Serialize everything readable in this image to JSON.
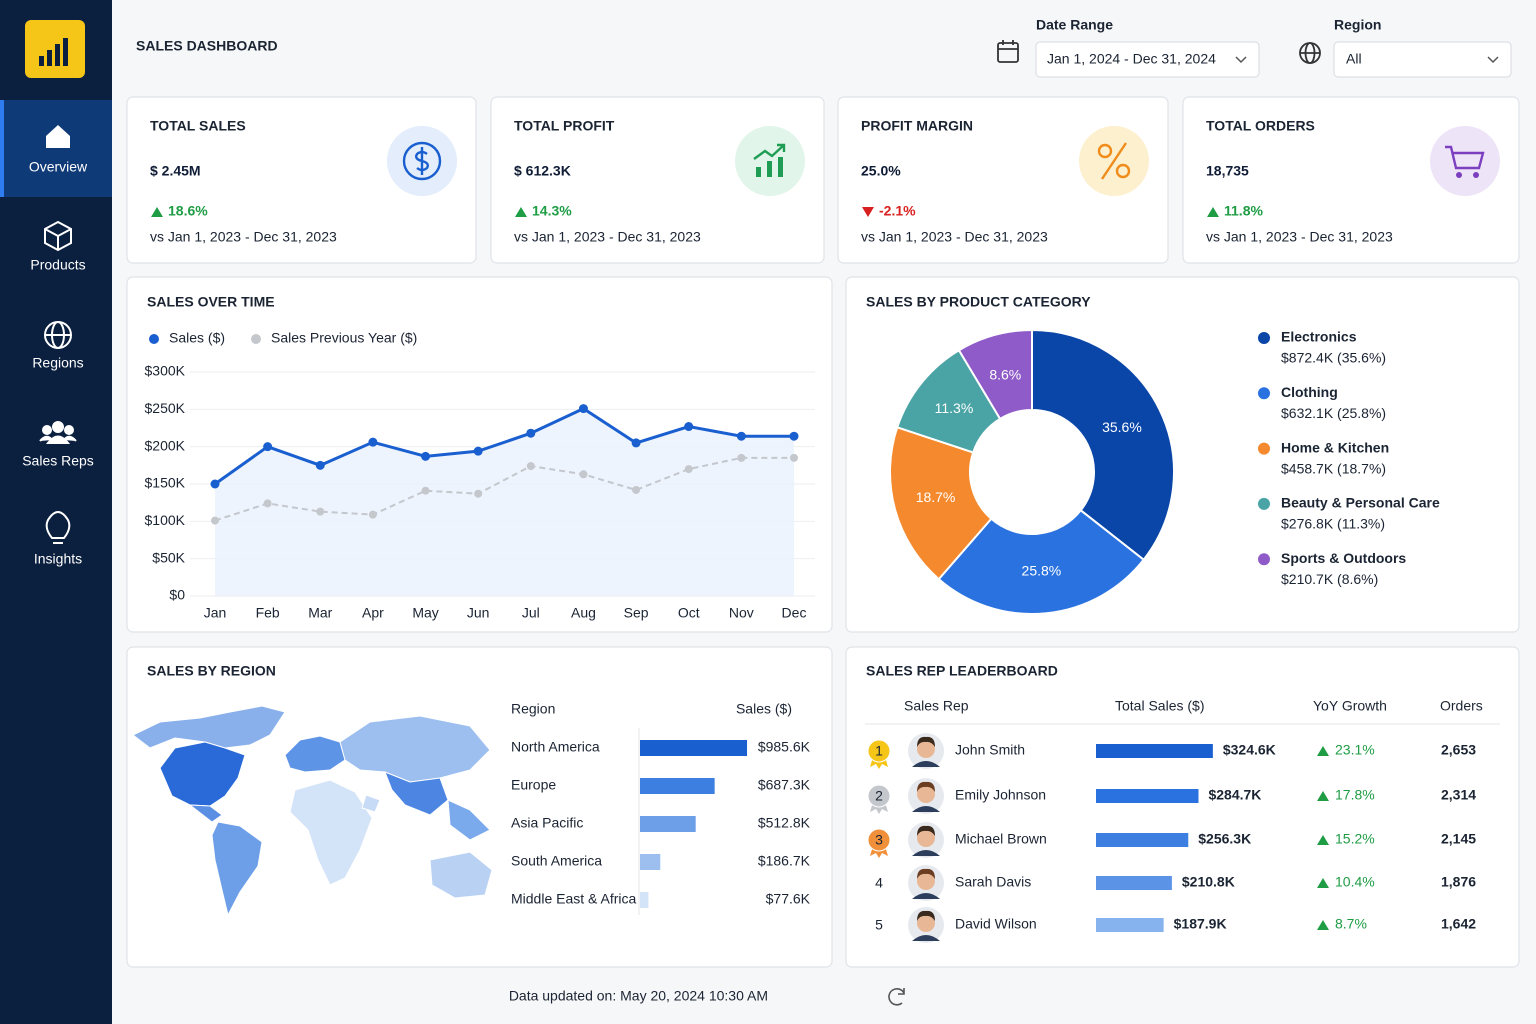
{
  "sidebar": {
    "items": [
      "Overview",
      "Products",
      "Regions",
      "Sales Reps",
      "Insights"
    ],
    "active": 0
  },
  "header": {
    "title": "SALES DASHBOARD",
    "date_range_label": "Date Range",
    "date_range": "Jan 1, 2024 - Dec 31, 2024",
    "region_label": "Region",
    "region": "All"
  },
  "kpis": [
    {
      "title": "TOTAL SALES",
      "value": "$ 2.45M",
      "change": "18.6%",
      "trend": "up",
      "comparison": "vs Jan 1, 2023 - Dec 31, 2023",
      "color": "#1a5fd0",
      "bg": "#e3edfb"
    },
    {
      "title": "TOTAL PROFIT",
      "value": "$ 612.3K",
      "change": "14.3%",
      "trend": "up",
      "comparison": "vs Jan 1, 2023 - Dec 31, 2023",
      "color": "#1f9d55",
      "bg": "#e2f5ea"
    },
    {
      "title": "PROFIT MARGIN",
      "value": "25.0%",
      "change": "-2.1%",
      "trend": "down",
      "comparison": "vs Jan 1, 2023 - Dec 31, 2023",
      "color": "#f08c1a",
      "bg": "#fdf0cf"
    },
    {
      "title": "TOTAL ORDERS",
      "value": "18,735",
      "change": "11.8%",
      "trend": "up",
      "comparison": "vs Jan 1, 2023 - Dec 31, 2023",
      "color": "#7b3fbf",
      "bg": "#eee4f8"
    }
  ],
  "sales_over_time": {
    "type": "line",
    "title": "SALES OVER TIME",
    "categories": [
      "Jan",
      "Feb",
      "Mar",
      "Apr",
      "May",
      "Jun",
      "Jul",
      "Aug",
      "Sep",
      "Oct",
      "Nov",
      "Dec"
    ],
    "series": [
      {
        "name": "Sales ($)",
        "color": "#1a5fd0",
        "values": [
          150,
          200,
          175,
          206,
          187,
          194,
          218,
          251,
          205,
          227,
          214,
          214
        ]
      },
      {
        "name": "Sales Previous Year ($)",
        "color": "#c4c7cc",
        "values": [
          101,
          124,
          113,
          109,
          141,
          137,
          174,
          163,
          142,
          170,
          185,
          185
        ]
      }
    ],
    "ylim": [
      0,
      300
    ],
    "yticks": [
      {
        "value": 0,
        "label": "$0"
      },
      {
        "value": 50,
        "label": "$50K"
      },
      {
        "value": 100,
        "label": "$100K"
      },
      {
        "value": 150,
        "label": "$150K"
      },
      {
        "value": 200,
        "label": "$200K"
      },
      {
        "value": 250,
        "label": "$250K"
      },
      {
        "value": 300,
        "label": "$300K"
      }
    ],
    "grid": true
  },
  "sales_by_category": {
    "type": "pie",
    "title": "SALES BY PRODUCT CATEGORY",
    "categories": [
      "Electronics",
      "Clothing",
      "Home & Kitchen",
      "Beauty & Personal Care",
      "Sports & Outdoors"
    ],
    "values": [
      35.6,
      25.8,
      18.7,
      11.3,
      8.6
    ],
    "value_labels": [
      "35.6%",
      "25.8%",
      "18.7%",
      "11.3%",
      "8.6%"
    ],
    "details": [
      "$872.4K (35.6%)",
      "$632.1K (25.8%)",
      "$458.7K (18.7%)",
      "$276.8K (11.3%)",
      "$210.7K (8.6%)"
    ],
    "colors": [
      "#0a45a8",
      "#2a72e0",
      "#f5892d",
      "#4aa3a5",
      "#8f5bc8"
    ]
  },
  "sales_by_region": {
    "type": "bar",
    "title": "SALES BY REGION",
    "column_headers": [
      "Region",
      "Sales ($)"
    ],
    "categories": [
      "North America",
      "Europe",
      "Asia Pacific",
      "South America",
      "Middle East & Africa"
    ],
    "values": [
      985.6,
      687.3,
      512.8,
      186.7,
      77.6
    ],
    "value_labels": [
      "$985.6K",
      "$687.3K",
      "$512.8K",
      "$186.7K",
      "$77.6K"
    ],
    "colors": [
      "#1a5fd0",
      "#3d7fe0",
      "#6c9fe8",
      "#9cbff0",
      "#d3e3f8"
    ],
    "xlim": [
      0,
      1000
    ]
  },
  "leaderboard": {
    "title": "SALES REP LEADERBOARD",
    "column_headers": [
      "Sales Rep",
      "Total Sales ($)",
      "YoY Growth",
      "Orders"
    ],
    "rows": [
      {
        "rank": "1",
        "name": "John Smith",
        "sales": 324.6,
        "sales_label": "$324.6K",
        "growth": "23.1%",
        "orders": "2,653"
      },
      {
        "rank": "2",
        "name": "Emily Johnson",
        "sales": 284.7,
        "sales_label": "$284.7K",
        "growth": "17.8%",
        "orders": "2,314"
      },
      {
        "rank": "3",
        "name": "Michael Brown",
        "sales": 256.3,
        "sales_label": "$256.3K",
        "growth": "15.2%",
        "orders": "2,145"
      },
      {
        "rank": "4",
        "name": "Sarah Davis",
        "sales": 210.8,
        "sales_label": "$210.8K",
        "growth": "10.4%",
        "orders": "1,876"
      },
      {
        "rank": "5",
        "name": "David Wilson",
        "sales": 187.9,
        "sales_label": "$187.9K",
        "growth": "8.7%",
        "orders": "1,642"
      }
    ],
    "colors": [
      "#1a5fd0",
      "#2a72e0",
      "#3d7fe0",
      "#5b93e6",
      "#86b2ee"
    ],
    "xlim": [
      0,
      350
    ]
  },
  "footer": {
    "text": "Data updated on: May 20, 2024 10:30 AM"
  }
}
